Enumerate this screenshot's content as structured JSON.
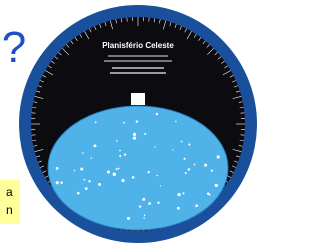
{
  "disc": {
    "title": "Planisfério Celeste"
  },
  "question_mark": "?",
  "note": {
    "lines": [
      "a",
      "n"
    ]
  }
}
